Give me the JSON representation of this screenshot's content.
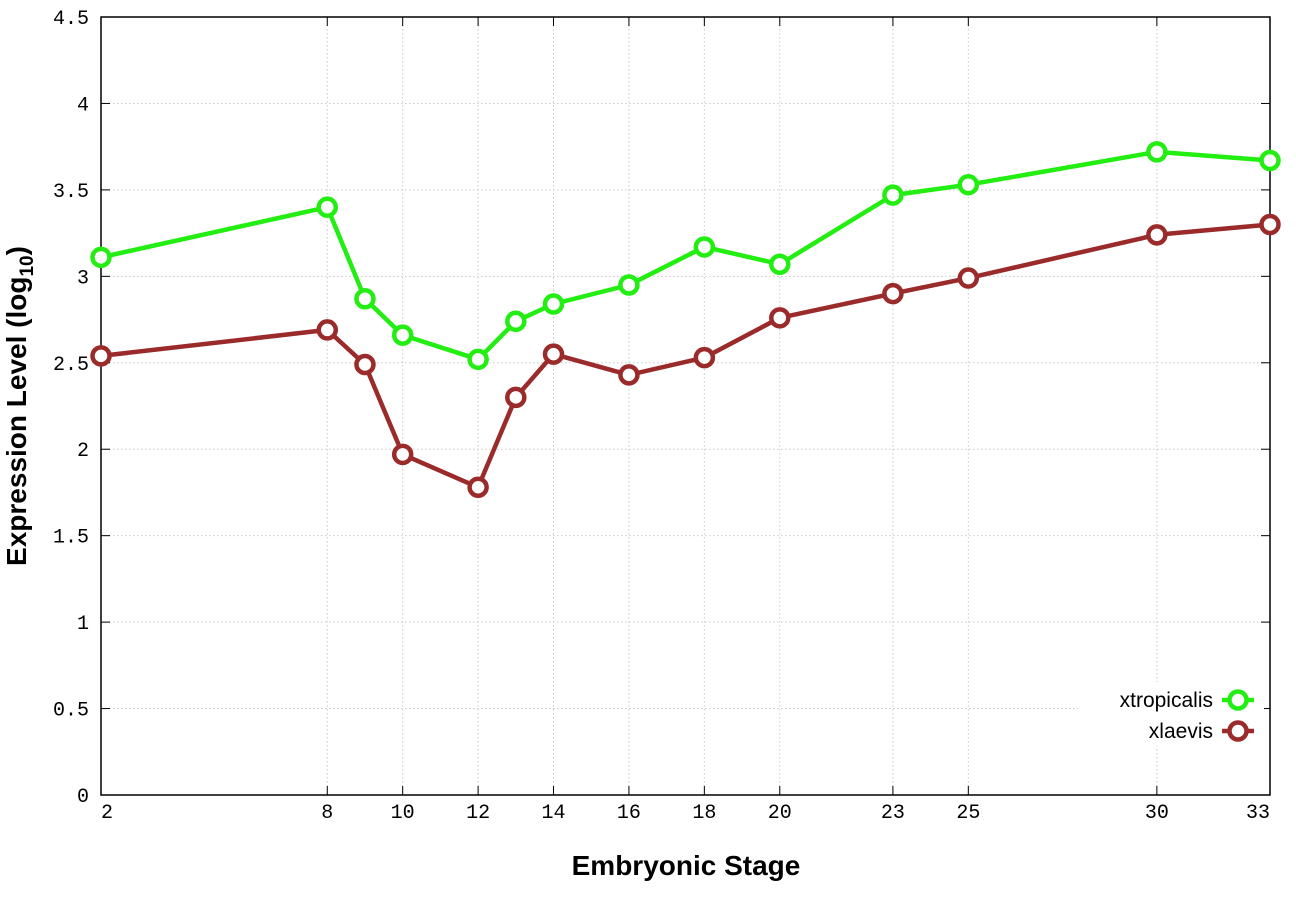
{
  "chart_data": {
    "type": "line",
    "xlabel": "Embryonic Stage",
    "ylabel": {
      "main": "Expression Level (log",
      "sub": "10",
      "close": ")"
    },
    "xlim": [
      2,
      33
    ],
    "ylim": [
      0,
      4.5
    ],
    "x_ticks": [
      2,
      8,
      10,
      12,
      14,
      16,
      18,
      20,
      23,
      25,
      30,
      33
    ],
    "x_tick_labels": [
      "2",
      "8",
      "10",
      "12",
      "14",
      "16",
      "18",
      "20",
      "23",
      "25",
      "30",
      "33"
    ],
    "y_ticks": [
      0,
      0.5,
      1,
      1.5,
      2,
      2.5,
      3,
      3.5,
      4,
      4.5
    ],
    "y_tick_labels": [
      "0",
      "0.5",
      "1",
      "1.5",
      "2",
      "2.5",
      "3",
      "3.5",
      "4",
      "4.5"
    ],
    "grid": true,
    "legend_position": "bottom-right",
    "x": [
      2,
      8,
      9,
      10,
      12,
      13,
      14,
      16,
      18,
      20,
      23,
      25,
      30,
      33
    ],
    "series": [
      {
        "name": "xtropicalis",
        "color": "#22ee11",
        "values": [
          3.11,
          3.4,
          2.87,
          2.66,
          2.52,
          2.74,
          2.84,
          2.95,
          3.17,
          3.07,
          3.47,
          3.53,
          3.72,
          3.67
        ]
      },
      {
        "name": "xlaevis",
        "color": "#9b2a2a",
        "values": [
          2.54,
          2.69,
          2.49,
          1.97,
          1.78,
          2.3,
          2.55,
          2.43,
          2.53,
          2.76,
          2.9,
          2.99,
          3.24,
          3.3
        ]
      }
    ]
  }
}
